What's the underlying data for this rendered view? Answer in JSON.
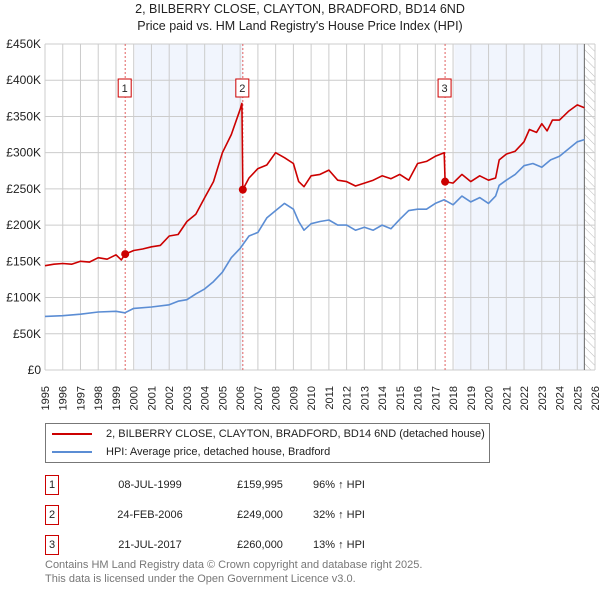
{
  "header": {
    "title": "2, BILBERRY CLOSE, CLAYTON, BRADFORD, BD14 6ND",
    "subtitle": "Price paid vs. HM Land Registry's House Price Index (HPI)"
  },
  "chart_data": {
    "type": "line",
    "title": "2, BILBERRY CLOSE, CLAYTON, BRADFORD, BD14 6ND",
    "subtitle": "Price paid vs. HM Land Registry's House Price Index (HPI)",
    "xlim": [
      1995,
      2026
    ],
    "ylim": [
      0,
      450000
    ],
    "grid": true,
    "legend_placement": "below",
    "y_ticks": [
      {
        "value": 0,
        "label": "£0"
      },
      {
        "value": 50000,
        "label": "£50K"
      },
      {
        "value": 100000,
        "label": "£100K"
      },
      {
        "value": 150000,
        "label": "£150K"
      },
      {
        "value": 200000,
        "label": "£200K"
      },
      {
        "value": 250000,
        "label": "£250K"
      },
      {
        "value": 300000,
        "label": "£300K"
      },
      {
        "value": 350000,
        "label": "£350K"
      },
      {
        "value": 400000,
        "label": "£400K"
      },
      {
        "value": 450000,
        "label": "£450K"
      }
    ],
    "x_ticks": [
      "1995",
      "1996",
      "1997",
      "1998",
      "1999",
      "2000",
      "2001",
      "2002",
      "2003",
      "2004",
      "2005",
      "2006",
      "2007",
      "2008",
      "2009",
      "2010",
      "2011",
      "2012",
      "2013",
      "2014",
      "2015",
      "2016",
      "2017",
      "2018",
      "2019",
      "2020",
      "2021",
      "2022",
      "2023",
      "2024",
      "2025",
      "2026"
    ],
    "shaded_periods": [
      [
        2000.05,
        2006.15
      ],
      [
        2018.07,
        2025.4
      ]
    ],
    "future_hatch_from": 2025.4,
    "series": [
      {
        "name": "2, BILBERRY CLOSE, CLAYTON, BRADFORD, BD14 6ND (detached house)",
        "color": "#cc0000",
        "x": [
          1995,
          1995.5,
          1996,
          1996.5,
          1997,
          1997.5,
          1998,
          1998.5,
          1999,
          1999.3,
          1999.52,
          2000,
          2000.5,
          2001,
          2001.5,
          2002,
          2002.5,
          2003,
          2003.5,
          2004,
          2004.5,
          2005,
          2005.5,
          2006,
          2006.1,
          2006.15,
          2006.5,
          2007,
          2007.5,
          2008,
          2008.5,
          2009,
          2009.3,
          2009.6,
          2010,
          2010.5,
          2011,
          2011.5,
          2012,
          2012.5,
          2013,
          2013.5,
          2014,
          2014.5,
          2015,
          2015.5,
          2016,
          2016.5,
          2017,
          2017.5,
          2017.55,
          2018,
          2018.5,
          2019,
          2019.5,
          2020,
          2020.4,
          2020.6,
          2021,
          2021.5,
          2022,
          2022.3,
          2022.7,
          2023,
          2023.3,
          2023.6,
          2024,
          2024.5,
          2025,
          2025.4
        ],
        "y": [
          144000,
          146000,
          147000,
          146000,
          150000,
          149000,
          155000,
          153000,
          159000,
          152000,
          159995,
          165000,
          167000,
          170000,
          172000,
          185000,
          187000,
          205000,
          215000,
          238000,
          260000,
          300000,
          325000,
          360000,
          368000,
          249000,
          265000,
          278000,
          283000,
          300000,
          293000,
          285000,
          260000,
          253000,
          268000,
          270000,
          276000,
          262000,
          260000,
          254000,
          258000,
          262000,
          268000,
          264000,
          270000,
          262000,
          285000,
          288000,
          295000,
          300000,
          260000,
          258000,
          270000,
          260000,
          268000,
          262000,
          265000,
          290000,
          298000,
          302000,
          315000,
          332000,
          328000,
          340000,
          330000,
          345000,
          345000,
          357000,
          366000,
          362000
        ]
      },
      {
        "name": "HPI: Average price, detached house, Bradford",
        "color": "#5b8dd4",
        "x": [
          1995,
          1996,
          1997,
          1998,
          1999,
          1999.5,
          2000,
          2001,
          2002,
          2002.5,
          2003,
          2003.5,
          2004,
          2004.5,
          2005,
          2005.5,
          2006,
          2006.5,
          2007,
          2007.5,
          2008,
          2008.5,
          2009,
          2009.3,
          2009.6,
          2010,
          2010.5,
          2011,
          2011.5,
          2012,
          2012.5,
          2013,
          2013.5,
          2014,
          2014.5,
          2015,
          2015.5,
          2016,
          2016.5,
          2017,
          2017.5,
          2018,
          2018.5,
          2019,
          2019.5,
          2020,
          2020.4,
          2020.6,
          2021,
          2021.5,
          2022,
          2022.5,
          2023,
          2023.5,
          2024,
          2024.5,
          2025,
          2025.4
        ],
        "y": [
          74000,
          75000,
          77000,
          80000,
          81000,
          79000,
          85000,
          87000,
          90000,
          95000,
          97000,
          105000,
          112000,
          122000,
          135000,
          155000,
          168000,
          185000,
          190000,
          210000,
          220000,
          230000,
          222000,
          205000,
          193000,
          202000,
          205000,
          207000,
          200000,
          200000,
          193000,
          197000,
          193000,
          200000,
          195000,
          208000,
          220000,
          222000,
          222000,
          230000,
          235000,
          228000,
          240000,
          232000,
          238000,
          230000,
          240000,
          255000,
          262000,
          270000,
          282000,
          285000,
          280000,
          290000,
          295000,
          305000,
          315000,
          318000
        ]
      }
    ],
    "annotations": [
      {
        "label": "1",
        "x": 1999.52,
        "y": 159995
      },
      {
        "label": "2",
        "x": 2006.15,
        "y": 249000
      },
      {
        "label": "3",
        "x": 2017.55,
        "y": 260000
      }
    ]
  },
  "legend": [
    {
      "label": "2, BILBERRY CLOSE, CLAYTON, BRADFORD, BD14 6ND (detached house)",
      "color": "#cc0000"
    },
    {
      "label": "HPI: Average price, detached house, Bradford",
      "color": "#5b8dd4"
    }
  ],
  "transactions": [
    {
      "num": "1",
      "date": "08-JUL-1999",
      "price": "£159,995",
      "hpi": "96% ↑ HPI"
    },
    {
      "num": "2",
      "date": "24-FEB-2006",
      "price": "£249,000",
      "hpi": "32% ↑ HPI"
    },
    {
      "num": "3",
      "date": "21-JUL-2017",
      "price": "£260,000",
      "hpi": "13% ↑ HPI"
    }
  ],
  "footer": {
    "line1": "Contains HM Land Registry data © Crown copyright and database right 2025.",
    "line2": "This data is licensed under the Open Government Licence v3.0."
  }
}
